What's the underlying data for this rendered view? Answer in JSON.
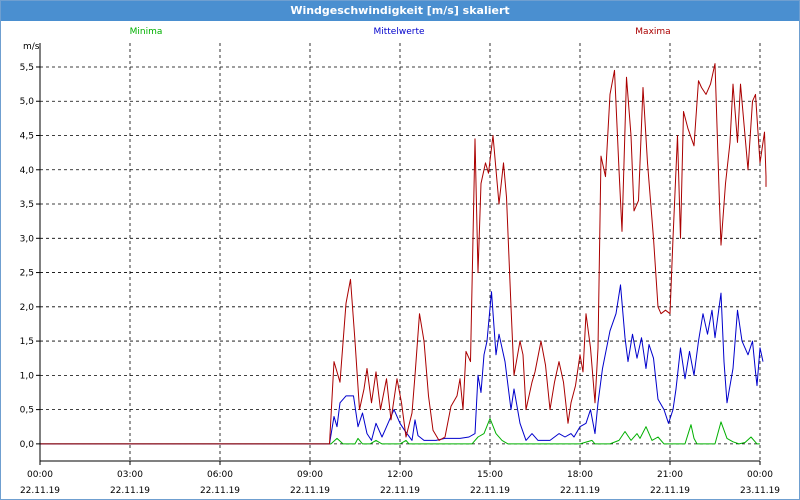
{
  "window": {
    "title": "Windgeschwindigkeit [m/s] skaliert"
  },
  "chart_data": {
    "type": "line",
    "title": "Windgeschwindigkeit [m/s] skaliert",
    "ylabel": "m/s",
    "xlabel": "",
    "ylim": [
      -0.25,
      5.85
    ],
    "xlim": [
      0,
      24
    ],
    "grid": true,
    "legend_placement": "top",
    "y_ticks": [
      "0,0",
      "0,5",
      "1,0",
      "1,5",
      "2,0",
      "2,5",
      "3,0",
      "3,5",
      "4,0",
      "4,5",
      "5,0",
      "5,5"
    ],
    "x_ticks": [
      {
        "time": "00:00",
        "date": "22.11.19"
      },
      {
        "time": "03:00",
        "date": "22.11.19"
      },
      {
        "time": "06:00",
        "date": "22.11.19"
      },
      {
        "time": "09:00",
        "date": "22.11.19"
      },
      {
        "time": "12:00",
        "date": "22.11.19"
      },
      {
        "time": "15:00",
        "date": "22.11.19"
      },
      {
        "time": "18:00",
        "date": "22.11.19"
      },
      {
        "time": "21:00",
        "date": "22.11.19"
      },
      {
        "time": "00:00",
        "date": "23.11.19"
      }
    ],
    "series": [
      {
        "name": "Minima",
        "color": "#00b000",
        "points": [
          [
            0,
            0
          ],
          [
            9.7,
            0
          ],
          [
            9.9,
            0.08
          ],
          [
            10.1,
            0
          ],
          [
            10.5,
            0
          ],
          [
            10.6,
            0.08
          ],
          [
            10.75,
            0
          ],
          [
            11.0,
            0
          ],
          [
            11.2,
            0.05
          ],
          [
            11.4,
            0
          ],
          [
            12.0,
            0
          ],
          [
            12.2,
            0.05
          ],
          [
            12.3,
            0
          ],
          [
            13.0,
            0
          ],
          [
            13.5,
            0
          ],
          [
            14.0,
            0
          ],
          [
            14.4,
            0
          ],
          [
            14.6,
            0.1
          ],
          [
            14.8,
            0.15
          ],
          [
            15.0,
            0.37
          ],
          [
            15.2,
            0.15
          ],
          [
            15.4,
            0.05
          ],
          [
            15.6,
            0
          ],
          [
            16.0,
            0
          ],
          [
            16.5,
            0
          ],
          [
            17.0,
            0
          ],
          [
            17.5,
            0
          ],
          [
            18.0,
            0
          ],
          [
            18.4,
            0.05
          ],
          [
            18.5,
            0
          ],
          [
            19.0,
            0
          ],
          [
            19.3,
            0.05
          ],
          [
            19.5,
            0.18
          ],
          [
            19.7,
            0.05
          ],
          [
            19.9,
            0.15
          ],
          [
            20.0,
            0.08
          ],
          [
            20.2,
            0.25
          ],
          [
            20.4,
            0.05
          ],
          [
            20.6,
            0.1
          ],
          [
            20.8,
            0
          ],
          [
            21.5,
            0
          ],
          [
            21.7,
            0.28
          ],
          [
            21.8,
            0.08
          ],
          [
            21.9,
            0
          ],
          [
            22.5,
            0
          ],
          [
            22.7,
            0.32
          ],
          [
            22.9,
            0.08
          ],
          [
            23.1,
            0.03
          ],
          [
            23.3,
            0
          ],
          [
            23.5,
            0.02
          ],
          [
            23.7,
            0.1
          ],
          [
            23.9,
            0
          ],
          [
            24,
            0
          ]
        ]
      },
      {
        "name": "Mittelwerte",
        "color": "#0000cc",
        "points": [
          [
            0,
            0
          ],
          [
            9.65,
            0
          ],
          [
            9.8,
            0.4
          ],
          [
            9.9,
            0.25
          ],
          [
            10.0,
            0.6
          ],
          [
            10.2,
            0.7
          ],
          [
            10.45,
            0.7
          ],
          [
            10.6,
            0.25
          ],
          [
            10.75,
            0.45
          ],
          [
            10.9,
            0.15
          ],
          [
            11.05,
            0.05
          ],
          [
            11.2,
            0.3
          ],
          [
            11.4,
            0.1
          ],
          [
            11.5,
            0.2
          ],
          [
            11.8,
            0.5
          ],
          [
            12.0,
            0.3
          ],
          [
            12.15,
            0.2
          ],
          [
            12.4,
            0.05
          ],
          [
            12.5,
            0.35
          ],
          [
            12.6,
            0.12
          ],
          [
            12.8,
            0.05
          ],
          [
            13.2,
            0.05
          ],
          [
            13.5,
            0.08
          ],
          [
            14.0,
            0.08
          ],
          [
            14.3,
            0.1
          ],
          [
            14.5,
            0.15
          ],
          [
            14.6,
            1.0
          ],
          [
            14.7,
            0.75
          ],
          [
            14.8,
            1.3
          ],
          [
            14.9,
            1.5
          ],
          [
            15.05,
            2.22
          ],
          [
            15.2,
            1.3
          ],
          [
            15.3,
            1.6
          ],
          [
            15.5,
            1.2
          ],
          [
            15.7,
            0.5
          ],
          [
            15.8,
            0.8
          ],
          [
            16.0,
            0.3
          ],
          [
            16.2,
            0.05
          ],
          [
            16.4,
            0.15
          ],
          [
            16.6,
            0.05
          ],
          [
            17.0,
            0.05
          ],
          [
            17.3,
            0.15
          ],
          [
            17.5,
            0.1
          ],
          [
            17.7,
            0.15
          ],
          [
            17.8,
            0.1
          ],
          [
            18.0,
            0.25
          ],
          [
            18.2,
            0.3
          ],
          [
            18.35,
            0.5
          ],
          [
            18.5,
            0.15
          ],
          [
            18.6,
            0.6
          ],
          [
            18.75,
            1.1
          ],
          [
            19.0,
            1.65
          ],
          [
            19.2,
            1.9
          ],
          [
            19.35,
            2.32
          ],
          [
            19.5,
            1.55
          ],
          [
            19.6,
            1.2
          ],
          [
            19.75,
            1.6
          ],
          [
            19.9,
            1.25
          ],
          [
            20.05,
            1.55
          ],
          [
            20.2,
            1.1
          ],
          [
            20.3,
            1.45
          ],
          [
            20.45,
            1.25
          ],
          [
            20.6,
            0.65
          ],
          [
            20.8,
            0.5
          ],
          [
            20.95,
            0.3
          ],
          [
            21.1,
            0.5
          ],
          [
            21.2,
            0.8
          ],
          [
            21.35,
            1.4
          ],
          [
            21.5,
            0.95
          ],
          [
            21.65,
            1.35
          ],
          [
            21.8,
            1.0
          ],
          [
            21.95,
            1.5
          ],
          [
            22.1,
            1.9
          ],
          [
            22.25,
            1.6
          ],
          [
            22.4,
            1.95
          ],
          [
            22.5,
            1.55
          ],
          [
            22.7,
            2.2
          ],
          [
            22.8,
            1.2
          ],
          [
            22.9,
            0.6
          ],
          [
            23.1,
            1.1
          ],
          [
            23.25,
            1.95
          ],
          [
            23.4,
            1.5
          ],
          [
            23.6,
            1.3
          ],
          [
            23.75,
            1.5
          ],
          [
            23.85,
            1.05
          ],
          [
            23.9,
            0.85
          ],
          [
            24.0,
            1.4
          ],
          [
            24.1,
            1.2
          ]
        ]
      },
      {
        "name": "Maxima",
        "color": "#aa0000",
        "points": [
          [
            0,
            0
          ],
          [
            9.65,
            0
          ],
          [
            9.8,
            1.2
          ],
          [
            10.0,
            0.9
          ],
          [
            10.2,
            2.05
          ],
          [
            10.35,
            2.4
          ],
          [
            10.5,
            1.5
          ],
          [
            10.65,
            0.5
          ],
          [
            10.8,
            0.8
          ],
          [
            10.9,
            1.1
          ],
          [
            11.05,
            0.6
          ],
          [
            11.2,
            1.05
          ],
          [
            11.35,
            0.5
          ],
          [
            11.55,
            0.95
          ],
          [
            11.7,
            0.35
          ],
          [
            11.9,
            0.95
          ],
          [
            12.05,
            0.6
          ],
          [
            12.2,
            0.1
          ],
          [
            12.4,
            0.45
          ],
          [
            12.5,
            1.0
          ],
          [
            12.65,
            1.9
          ],
          [
            12.8,
            1.5
          ],
          [
            12.95,
            0.7
          ],
          [
            13.1,
            0.2
          ],
          [
            13.3,
            0.05
          ],
          [
            13.5,
            0.1
          ],
          [
            13.7,
            0.55
          ],
          [
            13.9,
            0.7
          ],
          [
            14.0,
            0.95
          ],
          [
            14.1,
            0.5
          ],
          [
            14.2,
            1.35
          ],
          [
            14.35,
            1.2
          ],
          [
            14.5,
            4.45
          ],
          [
            14.6,
            2.5
          ],
          [
            14.7,
            3.8
          ],
          [
            14.85,
            4.1
          ],
          [
            14.95,
            3.95
          ],
          [
            15.1,
            4.5
          ],
          [
            15.3,
            3.5
          ],
          [
            15.45,
            4.1
          ],
          [
            15.55,
            3.6
          ],
          [
            15.7,
            2.0
          ],
          [
            15.8,
            1.0
          ],
          [
            16.0,
            1.5
          ],
          [
            16.1,
            1.3
          ],
          [
            16.2,
            0.5
          ],
          [
            16.4,
            0.9
          ],
          [
            16.5,
            1.05
          ],
          [
            16.7,
            1.5
          ],
          [
            16.85,
            1.15
          ],
          [
            17.0,
            0.5
          ],
          [
            17.15,
            0.9
          ],
          [
            17.3,
            1.2
          ],
          [
            17.45,
            0.9
          ],
          [
            17.6,
            0.3
          ],
          [
            17.7,
            0.6
          ],
          [
            17.85,
            0.85
          ],
          [
            18.0,
            1.3
          ],
          [
            18.1,
            1.05
          ],
          [
            18.2,
            1.9
          ],
          [
            18.35,
            1.4
          ],
          [
            18.5,
            0.6
          ],
          [
            18.6,
            1.4
          ],
          [
            18.7,
            4.2
          ],
          [
            18.85,
            3.9
          ],
          [
            19.0,
            5.1
          ],
          [
            19.15,
            5.45
          ],
          [
            19.3,
            4.0
          ],
          [
            19.4,
            3.1
          ],
          [
            19.55,
            5.35
          ],
          [
            19.7,
            4.5
          ],
          [
            19.8,
            3.4
          ],
          [
            19.95,
            3.55
          ],
          [
            20.1,
            5.2
          ],
          [
            20.25,
            4.1
          ],
          [
            20.45,
            3.0
          ],
          [
            20.6,
            2.0
          ],
          [
            20.7,
            1.9
          ],
          [
            20.85,
            1.95
          ],
          [
            21.0,
            1.9
          ],
          [
            21.1,
            3.0
          ],
          [
            21.25,
            4.5
          ],
          [
            21.35,
            3.0
          ],
          [
            21.45,
            4.85
          ],
          [
            21.6,
            4.6
          ],
          [
            21.8,
            4.35
          ],
          [
            21.95,
            5.3
          ],
          [
            22.05,
            5.2
          ],
          [
            22.2,
            5.1
          ],
          [
            22.35,
            5.25
          ],
          [
            22.5,
            5.55
          ],
          [
            22.65,
            3.5
          ],
          [
            22.7,
            2.9
          ],
          [
            22.85,
            3.8
          ],
          [
            23.0,
            4.4
          ],
          [
            23.1,
            5.25
          ],
          [
            23.25,
            4.4
          ],
          [
            23.35,
            5.25
          ],
          [
            23.5,
            4.5
          ],
          [
            23.6,
            4.0
          ],
          [
            23.75,
            5.0
          ],
          [
            23.85,
            5.1
          ],
          [
            24.0,
            4.1
          ],
          [
            24.15,
            4.55
          ],
          [
            24.3,
            3.9
          ],
          [
            24.4,
            3.75
          ]
        ]
      }
    ]
  }
}
